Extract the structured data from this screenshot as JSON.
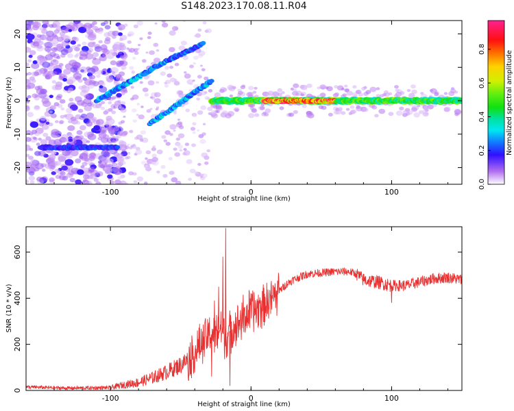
{
  "title": "S148.2023.170.08.11.R04",
  "chart_data": [
    {
      "type": "heatmap",
      "xlabel": "Height of straight line (km)",
      "ylabel": "Frequency (Hz)",
      "xlim": [
        -160,
        150
      ],
      "ylim": [
        -25,
        24
      ],
      "xticks": [
        -100,
        0,
        100
      ],
      "yticks": [
        -20,
        -10,
        0,
        10,
        20
      ],
      "colorbar": {
        "label": "Normalized spectral amplitude",
        "range": [
          0,
          0.97
        ],
        "ticks": [
          0.0,
          0.2,
          0.4,
          0.6,
          0.8
        ],
        "tick_labels": [
          "0.0",
          "0.2",
          "0.4",
          "0.6",
          "0.8"
        ],
        "colormap": "gist_ncar-like"
      },
      "features": [
        {
          "name": "main carrier",
          "x": [
            -28,
            150
          ],
          "freq": 0,
          "amplitude": 0.5
        },
        {
          "name": "strong peak",
          "x": [
            8,
            60
          ],
          "freq": 0,
          "amplitude": 0.9
        },
        {
          "name": "upper branch",
          "x": [
            -110,
            -60
          ],
          "freq": [
            0,
            12
          ],
          "amplitude": 0.3
        },
        {
          "name": "steep branch",
          "x": [
            -60,
            -34
          ],
          "freq": [
            12,
            17
          ],
          "amplitude": 0.25
        },
        {
          "name": "lower branch",
          "x": [
            -72,
            -28
          ],
          "freq": [
            -7,
            6
          ],
          "amplitude": 0.3
        },
        {
          "name": "side line",
          "x": [
            -150,
            -95
          ],
          "freq": -14,
          "amplitude": 0.2
        }
      ]
    },
    {
      "type": "line",
      "xlabel": "Height of straight line (km)",
      "ylabel": "SNR (10 * v/v)",
      "xlim": [
        -160,
        150
      ],
      "ylim": [
        0,
        710
      ],
      "xticks": [
        -100,
        0,
        100
      ],
      "yticks": [
        0,
        200,
        400,
        600
      ],
      "color": "#e83030",
      "trend": [
        [
          -160,
          15
        ],
        [
          -130,
          10
        ],
        [
          -100,
          12
        ],
        [
          -90,
          25
        ],
        [
          -80,
          35
        ],
        [
          -70,
          55
        ],
        [
          -60,
          80
        ],
        [
          -50,
          110
        ],
        [
          -42,
          150
        ],
        [
          -35,
          200
        ],
        [
          -30,
          240
        ],
        [
          -25,
          250
        ],
        [
          -22,
          270
        ],
        [
          -18,
          230
        ],
        [
          -15,
          260
        ],
        [
          -10,
          290
        ],
        [
          -5,
          320
        ],
        [
          0,
          340
        ],
        [
          5,
          360
        ],
        [
          10,
          380
        ],
        [
          15,
          400
        ],
        [
          20,
          430
        ],
        [
          25,
          460
        ],
        [
          30,
          480
        ],
        [
          40,
          505
        ],
        [
          50,
          510
        ],
        [
          60,
          515
        ],
        [
          70,
          515
        ],
        [
          75,
          505
        ],
        [
          80,
          480
        ],
        [
          90,
          470
        ],
        [
          100,
          455
        ],
        [
          110,
          455
        ],
        [
          120,
          470
        ],
        [
          130,
          485
        ],
        [
          140,
          490
        ],
        [
          150,
          480
        ]
      ],
      "spikes": [
        [
          -18,
          705
        ],
        [
          -20,
          580
        ],
        [
          -23,
          450
        ],
        [
          -26,
          390
        ],
        [
          -15,
          20
        ],
        [
          -28,
          60
        ],
        [
          100,
          380
        ]
      ]
    }
  ]
}
